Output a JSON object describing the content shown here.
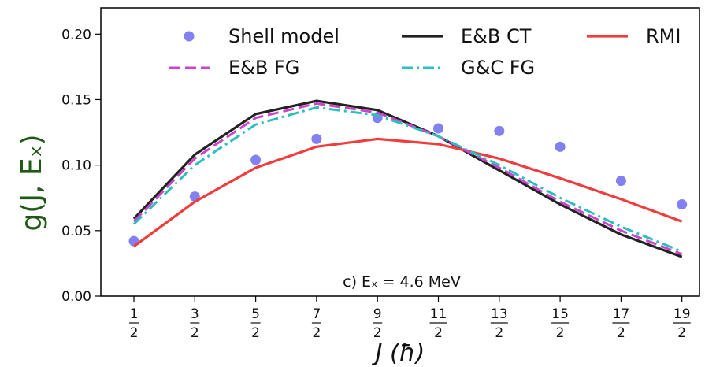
{
  "chart_data": {
    "type": "line",
    "x_tick_labels": [
      {
        "num": "1",
        "den": "2"
      },
      {
        "num": "3",
        "den": "2"
      },
      {
        "num": "5",
        "den": "2"
      },
      {
        "num": "7",
        "den": "2"
      },
      {
        "num": "9",
        "den": "2"
      },
      {
        "num": "11",
        "den": "2"
      },
      {
        "num": "13",
        "den": "2"
      },
      {
        "num": "15",
        "den": "2"
      },
      {
        "num": "17",
        "den": "2"
      },
      {
        "num": "19",
        "den": "2"
      }
    ],
    "x": [
      0.5,
      1.5,
      2.5,
      3.5,
      4.5,
      5.5,
      6.5,
      7.5,
      8.5,
      9.5
    ],
    "xlabel": "J (ħ)",
    "ylabel": "g(J, Eₓ)",
    "ylim": [
      0.0,
      0.22
    ],
    "y_ticks": [
      "0.00",
      "0.05",
      "0.10",
      "0.15",
      "0.20"
    ],
    "annotation": "c) Eₓ = 4.6 MeV",
    "legend_placement": "top",
    "grid": false,
    "series": [
      {
        "name": "Shell model",
        "style": "scatter",
        "color": "#6b6bf0",
        "values": [
          0.042,
          0.076,
          0.104,
          0.12,
          0.136,
          0.128,
          0.126,
          0.114,
          0.088,
          0.07
        ]
      },
      {
        "name": "E&B CT",
        "style": "solid",
        "color": "#222222",
        "values": [
          0.059,
          0.108,
          0.139,
          0.149,
          0.142,
          0.122,
          0.096,
          0.07,
          0.047,
          0.03
        ]
      },
      {
        "name": "RMI",
        "style": "solid",
        "color": "#f03c3c",
        "values": [
          0.038,
          0.072,
          0.098,
          0.114,
          0.12,
          0.116,
          0.105,
          0.09,
          0.074,
          0.057
        ]
      },
      {
        "name": "E&B FG",
        "style": "dashed",
        "color": "#cc44cc",
        "values": [
          0.057,
          0.105,
          0.136,
          0.147,
          0.14,
          0.122,
          0.098,
          0.072,
          0.05,
          0.032
        ]
      },
      {
        "name": "G&C FG",
        "style": "dashdot",
        "color": "#2cbfbf",
        "values": [
          0.055,
          0.1,
          0.131,
          0.144,
          0.138,
          0.122,
          0.1,
          0.075,
          0.053,
          0.034
        ]
      }
    ]
  }
}
